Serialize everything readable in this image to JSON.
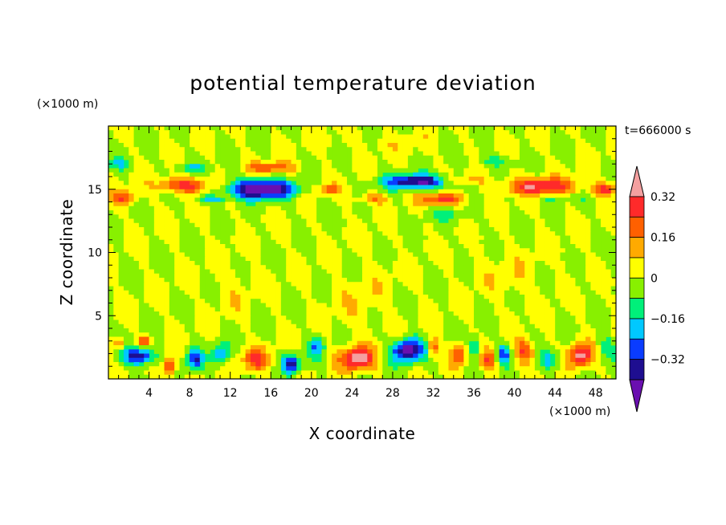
{
  "chart_data": {
    "type": "heatmap",
    "title": "potential temperature deviation",
    "xlabel": "X coordinate",
    "ylabel": "Z coordinate",
    "x_unit": "(×1000 m)",
    "y_unit": "(×1000 m)",
    "time_label": "t=666000 s",
    "xlim": [
      0,
      50
    ],
    "ylim": [
      0,
      20
    ],
    "x_ticks": [
      4,
      8,
      12,
      16,
      20,
      24,
      28,
      32,
      36,
      40,
      44,
      48
    ],
    "y_ticks": [
      5,
      10,
      15
    ],
    "colorbar": {
      "levels": [
        -0.48,
        -0.4,
        -0.32,
        -0.24,
        -0.16,
        -0.08,
        0,
        0.08,
        0.16,
        0.24,
        0.32,
        0.4
      ],
      "tick_values": [
        0.32,
        0.16,
        0,
        -0.16,
        -0.32
      ],
      "tick_labels": [
        "0.32",
        "0.16",
        "0",
        "−0.16",
        "−0.32"
      ],
      "colors": [
        "#6a0fb0",
        "#1e0e90",
        "#0a3cff",
        "#00c8ff",
        "#00f07a",
        "#88f000",
        "#ffff00",
        "#ffaa00",
        "#ff6000",
        "#ff2a2a",
        "#f4a0a0"
      ]
    },
    "field_features": [
      {
        "x": 7.5,
        "z": 15.3,
        "sx": 2.5,
        "sz": 0.6,
        "value": 0.3
      },
      {
        "x": 1.5,
        "z": 14.3,
        "sx": 1.2,
        "sz": 0.6,
        "value": 0.22
      },
      {
        "x": 16,
        "z": 16.7,
        "sx": 2.2,
        "sz": 0.45,
        "value": 0.22
      },
      {
        "x": 15,
        "z": 15.0,
        "sx": 3.2,
        "sz": 0.75,
        "value": -0.5
      },
      {
        "x": 10,
        "z": 14.2,
        "sx": 1.5,
        "sz": 0.3,
        "value": -0.2
      },
      {
        "x": 21.5,
        "z": 15.0,
        "sx": 1.3,
        "sz": 0.4,
        "value": 0.18
      },
      {
        "x": 26,
        "z": 14.2,
        "sx": 1.5,
        "sz": 0.4,
        "value": 0.18
      },
      {
        "x": 30.5,
        "z": 15.6,
        "sx": 3.2,
        "sz": 0.55,
        "value": -0.42
      },
      {
        "x": 33,
        "z": 14.2,
        "sx": 2.2,
        "sz": 0.45,
        "value": 0.28
      },
      {
        "x": 42.5,
        "z": 15.2,
        "sx": 3.5,
        "sz": 0.7,
        "value": 0.32
      },
      {
        "x": 44,
        "z": 14.3,
        "sx": 2.5,
        "sz": 0.3,
        "value": -0.12
      },
      {
        "x": 49,
        "z": 15.0,
        "sx": 1.2,
        "sz": 0.5,
        "value": 0.3
      },
      {
        "x": 8,
        "z": 16.7,
        "sx": 1.5,
        "sz": 0.4,
        "value": -0.15
      },
      {
        "x": 38,
        "z": 17.2,
        "sx": 2.0,
        "sz": 0.5,
        "value": -0.12
      },
      {
        "x": 1,
        "z": 17.0,
        "sx": 1.0,
        "sz": 0.5,
        "value": -0.12
      },
      {
        "x": 35,
        "z": 15.7,
        "sx": 2.0,
        "sz": 0.35,
        "value": 0.15
      },
      {
        "x": 3,
        "z": 1.8,
        "sx": 1.5,
        "sz": 0.7,
        "value": -0.4
      },
      {
        "x": 1,
        "z": 2.8,
        "sx": 0.7,
        "sz": 0.5,
        "value": 0.2
      },
      {
        "x": 3.5,
        "z": 3.0,
        "sx": 0.7,
        "sz": 0.4,
        "value": 0.25
      },
      {
        "x": 6,
        "z": 1.0,
        "sx": 0.6,
        "sz": 0.8,
        "value": 0.3
      },
      {
        "x": 8.5,
        "z": 1.5,
        "sx": 0.8,
        "sz": 0.8,
        "value": -0.3
      },
      {
        "x": 11,
        "z": 2.0,
        "sx": 0.8,
        "sz": 0.8,
        "value": -0.25
      },
      {
        "x": 14.5,
        "z": 1.5,
        "sx": 1.3,
        "sz": 0.9,
        "value": 0.24
      },
      {
        "x": 18,
        "z": 1.2,
        "sx": 0.8,
        "sz": 0.7,
        "value": -0.35
      },
      {
        "x": 20.5,
        "z": 2.5,
        "sx": 0.8,
        "sz": 0.8,
        "value": -0.2
      },
      {
        "x": 24.5,
        "z": 1.6,
        "sx": 1.6,
        "sz": 0.9,
        "value": 0.38
      },
      {
        "x": 29.5,
        "z": 2.3,
        "sx": 1.5,
        "sz": 0.9,
        "value": -0.48
      },
      {
        "x": 32,
        "z": 2.5,
        "sx": 0.5,
        "sz": 0.8,
        "value": 0.25
      },
      {
        "x": 34.5,
        "z": 2.0,
        "sx": 0.8,
        "sz": 0.9,
        "value": 0.25
      },
      {
        "x": 36,
        "z": 2.5,
        "sx": 0.7,
        "sz": 0.8,
        "value": -0.2
      },
      {
        "x": 37.5,
        "z": 1.5,
        "sx": 0.7,
        "sz": 0.8,
        "value": 0.25
      },
      {
        "x": 39,
        "z": 2.0,
        "sx": 0.7,
        "sz": 0.8,
        "value": -0.25
      },
      {
        "x": 41,
        "z": 2.2,
        "sx": 1.0,
        "sz": 0.9,
        "value": 0.27
      },
      {
        "x": 43.5,
        "z": 1.5,
        "sx": 1.0,
        "sz": 0.8,
        "value": -0.2
      },
      {
        "x": 46.5,
        "z": 1.8,
        "sx": 1.2,
        "sz": 0.9,
        "value": 0.35
      },
      {
        "x": 49,
        "z": 2.5,
        "sx": 0.8,
        "sz": 0.9,
        "value": -0.15
      },
      {
        "x": 12,
        "z": 7.5,
        "sx": 2.0,
        "sz": 2.0,
        "value": 0.05
      },
      {
        "x": 25,
        "z": 6.0,
        "sx": 3.0,
        "sz": 2.5,
        "value": 0.05
      },
      {
        "x": 40,
        "z": 8.0,
        "sx": 3.0,
        "sz": 2.0,
        "value": 0.05
      },
      {
        "x": 33,
        "z": 13.0,
        "sx": 2.0,
        "sz": 0.5,
        "value": -0.1
      },
      {
        "x": 27,
        "z": 18.7,
        "sx": 5.0,
        "sz": 0.8,
        "value": 0.04
      }
    ]
  }
}
